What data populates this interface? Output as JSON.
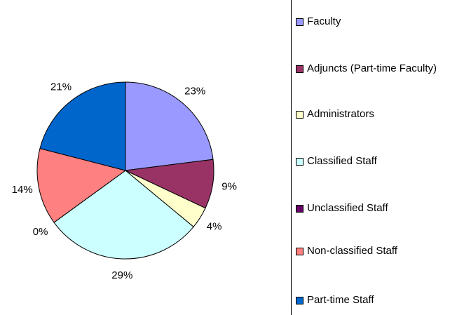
{
  "chart_data": {
    "type": "pie",
    "categories": [
      "Faculty",
      "Adjuncts (Part-time Faculty)",
      "Administrators",
      "Classified Staff",
      "Unclassified Staff",
      "Non-classified Staff",
      "Part-time Staff"
    ],
    "values": [
      23,
      9,
      4,
      29,
      0,
      14,
      21
    ],
    "value_labels": [
      "23%",
      "9%",
      "4%",
      "29%",
      "0%",
      "14%",
      "21%"
    ],
    "colors": [
      "#9999ff",
      "#993366",
      "#ffffcc",
      "#ccffff",
      "#660066",
      "#ff8080",
      "#0066cc"
    ],
    "legend": "right"
  }
}
